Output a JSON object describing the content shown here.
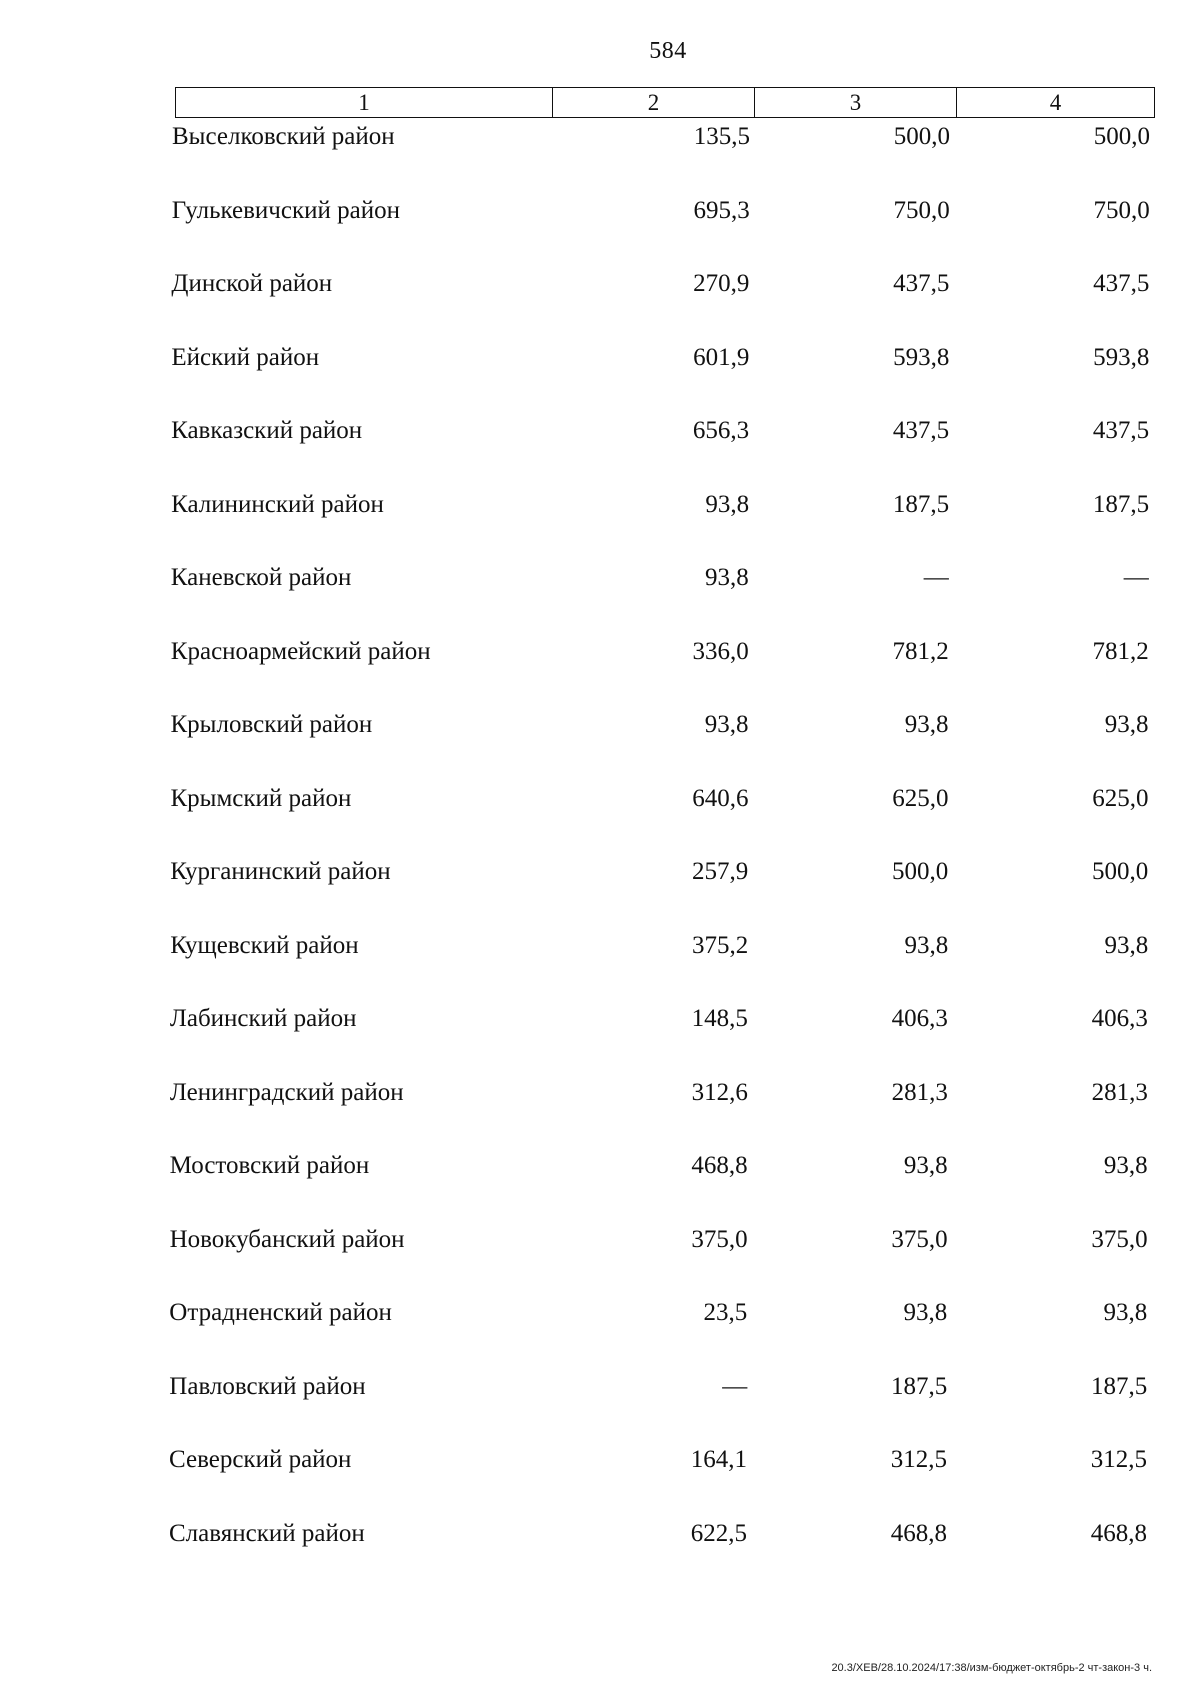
{
  "page_number": "584",
  "table": {
    "header": [
      "1",
      "2",
      "3",
      "4"
    ],
    "rows": [
      {
        "name": "Выселковский район",
        "v2": "135,5",
        "v3": "500,0",
        "v4": "500,0"
      },
      {
        "name": "Гулькевичский район",
        "v2": "695,3",
        "v3": "750,0",
        "v4": "750,0"
      },
      {
        "name": "Динской район",
        "v2": "270,9",
        "v3": "437,5",
        "v4": "437,5"
      },
      {
        "name": "Ейский район",
        "v2": "601,9",
        "v3": "593,8",
        "v4": "593,8"
      },
      {
        "name": "Кавказский район",
        "v2": "656,3",
        "v3": "437,5",
        "v4": "437,5"
      },
      {
        "name": "Калининский район",
        "v2": "93,8",
        "v3": "187,5",
        "v4": "187,5"
      },
      {
        "name": "Каневской район",
        "v2": "93,8",
        "v3": "—",
        "v4": "—"
      },
      {
        "name": "Красноармейский район",
        "v2": "336,0",
        "v3": "781,2",
        "v4": "781,2"
      },
      {
        "name": "Крыловский район",
        "v2": "93,8",
        "v3": "93,8",
        "v4": "93,8"
      },
      {
        "name": "Крымский район",
        "v2": "640,6",
        "v3": "625,0",
        "v4": "625,0"
      },
      {
        "name": "Курганинский район",
        "v2": "257,9",
        "v3": "500,0",
        "v4": "500,0"
      },
      {
        "name": "Кущевский район",
        "v2": "375,2",
        "v3": "93,8",
        "v4": "93,8"
      },
      {
        "name": "Лабинский район",
        "v2": "148,5",
        "v3": "406,3",
        "v4": "406,3"
      },
      {
        "name": "Ленинградский район",
        "v2": "312,6",
        "v3": "281,3",
        "v4": "281,3"
      },
      {
        "name": "Мостовский район",
        "v2": "468,8",
        "v3": "93,8",
        "v4": "93,8"
      },
      {
        "name": "Новокубанский район",
        "v2": "375,0",
        "v3": "375,0",
        "v4": "375,0"
      },
      {
        "name": "Отрадненский район",
        "v2": "23,5",
        "v3": "93,8",
        "v4": "93,8"
      },
      {
        "name": "Павловский район",
        "v2": "—",
        "v3": "187,5",
        "v4": "187,5"
      },
      {
        "name": "Северский район",
        "v2": "164,1",
        "v3": "312,5",
        "v4": "312,5"
      },
      {
        "name": "Славянский район",
        "v2": "622,5",
        "v3": "468,8",
        "v4": "468,8"
      }
    ]
  },
  "footer": "20.3/ХЕВ/28.10.2024/17:38/изм-бюджет-октябрь-2 чт-закон-3 ч."
}
